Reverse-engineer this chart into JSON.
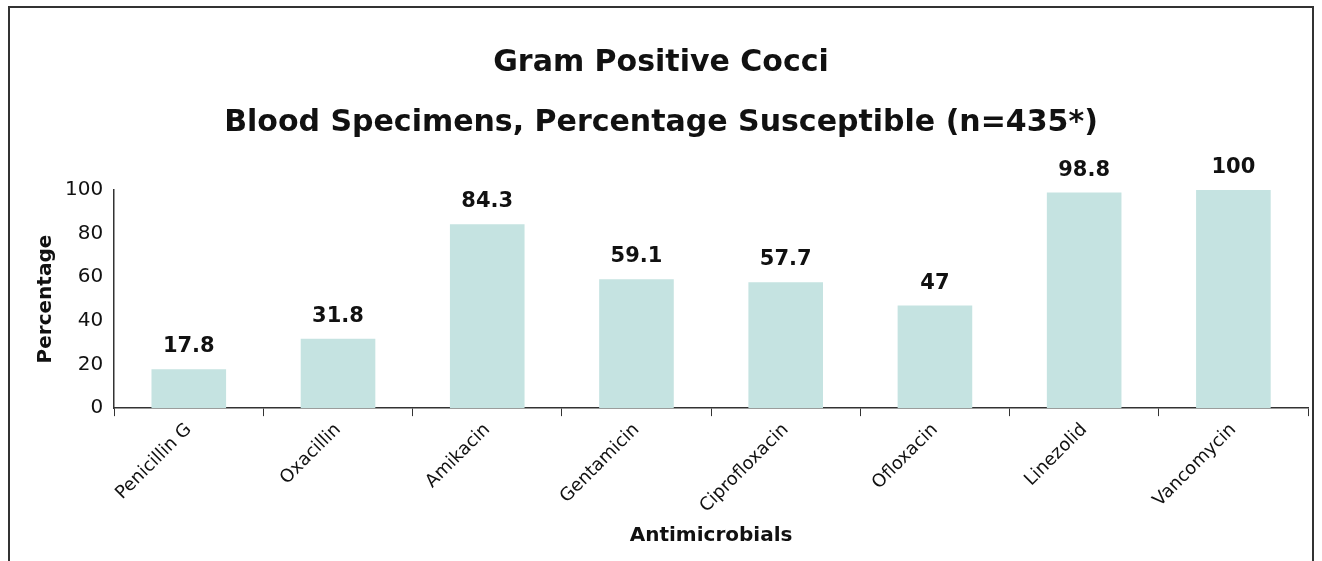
{
  "chart_data": {
    "type": "bar",
    "title": "Gram Positive Cocci",
    "subtitle": "Blood Specimens, Percentage Susceptible (n=435*)",
    "xlabel": "Antimicrobials",
    "ylabel": "Percentage",
    "categories": [
      "Penicillin G",
      "Oxacillin",
      "Amikacin",
      "Gentamicin",
      "Ciprofloxacin",
      "Ofloxacin",
      "Linezolid",
      "Vancomycin"
    ],
    "values": [
      17.8,
      31.8,
      84.3,
      59.1,
      57.7,
      47,
      98.8,
      100
    ],
    "color": "#c5e3e1",
    "ylim": [
      0,
      100
    ],
    "yticks": [
      0,
      20,
      40,
      60,
      80,
      100
    ],
    "grid": false,
    "legend": false,
    "data_labels": true
  }
}
